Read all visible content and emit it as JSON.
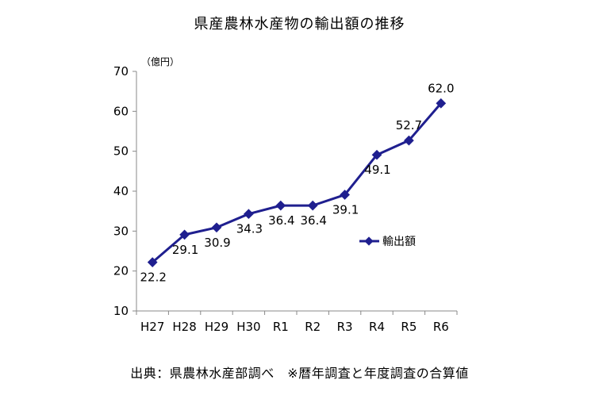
{
  "chart_data": {
    "type": "line",
    "title": "県産農林水産物の輸出額の推移",
    "unit_label": "（億円）",
    "categories": [
      "H27",
      "H28",
      "H29",
      "H30",
      "R1",
      "R2",
      "R3",
      "R4",
      "R5",
      "R6"
    ],
    "series": [
      {
        "name": "輸出額",
        "values": [
          22.2,
          29.1,
          30.9,
          34.3,
          36.4,
          36.4,
          39.1,
          49.1,
          52.7,
          62.0
        ],
        "labels": [
          "22.2",
          "29.1",
          "30.9",
          "34.3",
          "36.4",
          "36.4",
          "39.1",
          "49.1",
          "52.7",
          "62.0"
        ],
        "color": "#1f1f8f"
      }
    ],
    "y_ticks": [
      "10",
      "20",
      "30",
      "40",
      "50",
      "60",
      "70"
    ],
    "ylim": [
      10,
      70
    ],
    "legend_position": "right",
    "grid": false
  },
  "footer": {
    "source": "出典：県農林水産部調べ　※暦年調査と年度調査の合算値"
  }
}
